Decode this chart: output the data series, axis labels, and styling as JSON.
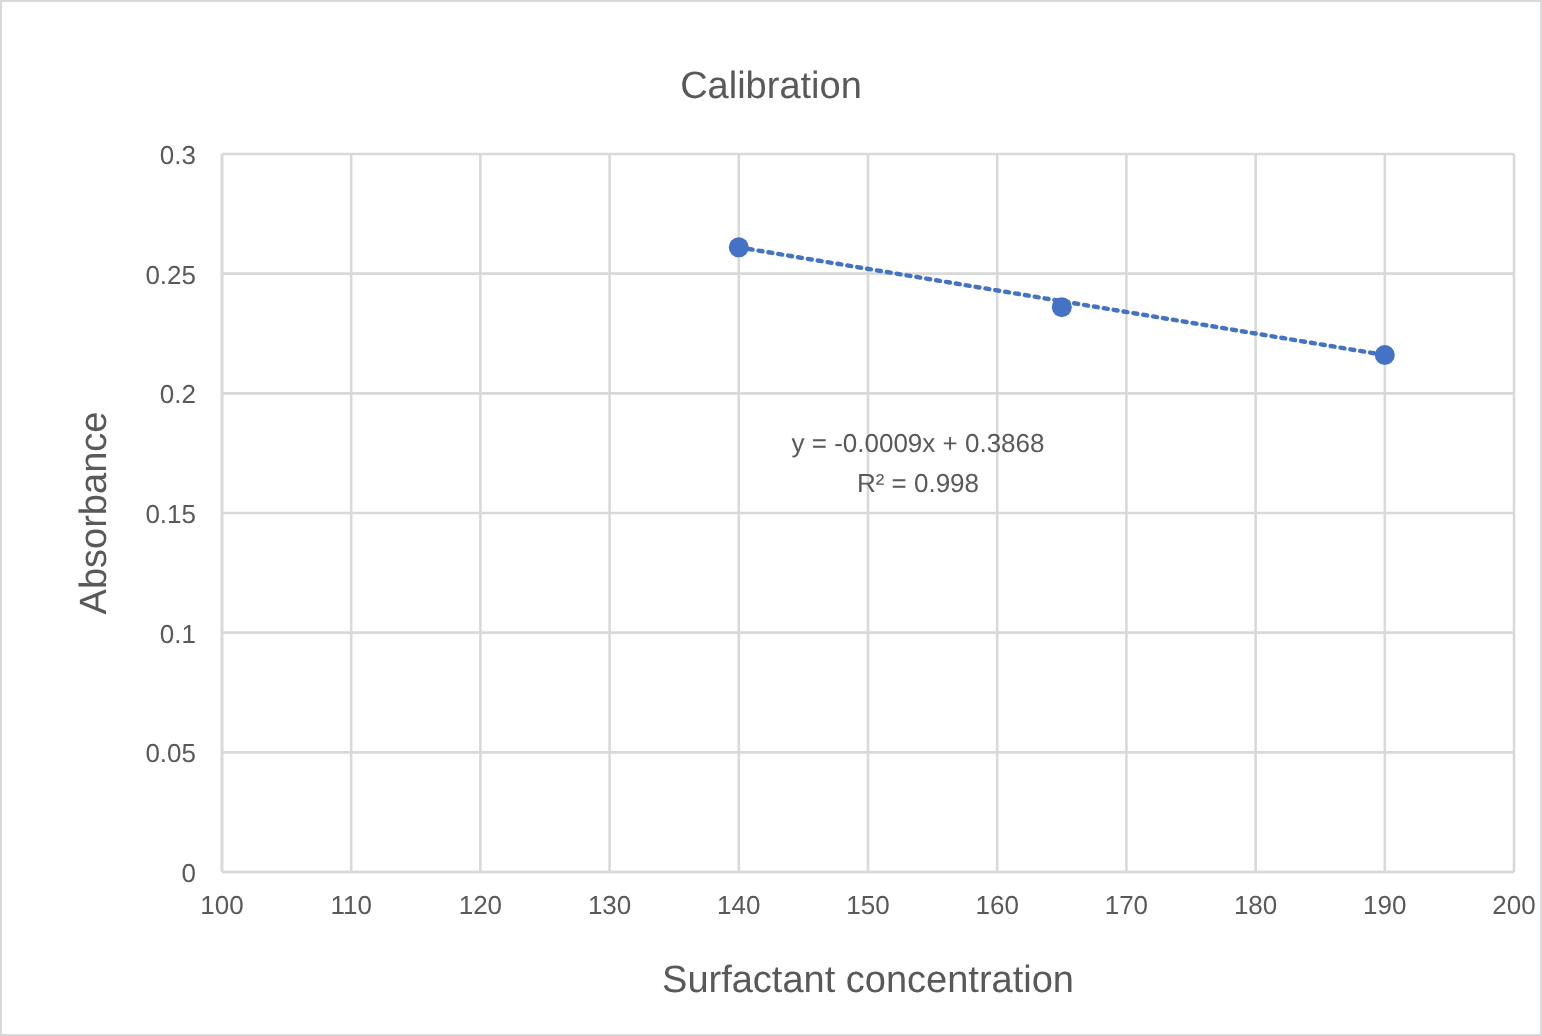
{
  "chart_data": {
    "type": "scatter",
    "title": "Calibration",
    "xlabel": "Surfactant concentration",
    "ylabel": "Absorbance",
    "xlim": [
      100,
      200
    ],
    "xticks": [
      100,
      110,
      120,
      130,
      140,
      150,
      160,
      170,
      180,
      190,
      200
    ],
    "ylim": [
      0,
      0.3
    ],
    "yticks": [
      0,
      0.05,
      0.1,
      0.15,
      0.2,
      0.25,
      0.3
    ],
    "grid": true,
    "marker": "circle",
    "series": [
      {
        "color": "#4472c4",
        "x": [
          140,
          165,
          190
        ],
        "values": [
          0.261,
          0.236,
          0.216
        ]
      },
      {
        "type": "line",
        "color": "#4472c4",
        "line_style": "dotted",
        "marker": "none",
        "x": [
          140,
          190
        ],
        "values": [
          0.261,
          0.216
        ]
      }
    ],
    "annotations": [
      "y = -0.0009x + 0.3868",
      "R² = 0.998"
    ]
  }
}
